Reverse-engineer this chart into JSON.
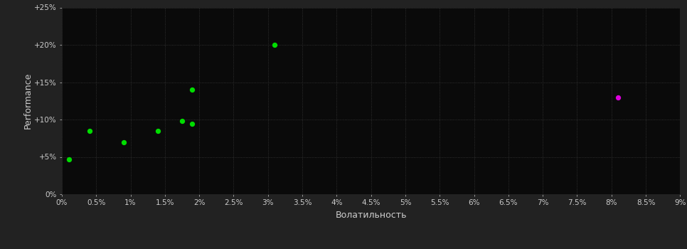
{
  "background_color": "#222222",
  "plot_bg_color": "#0a0a0a",
  "grid_color": "#3a3a3a",
  "grid_linestyle": ":",
  "xlabel": "Волатильность",
  "ylabel": "Performance",
  "xlim": [
    0,
    0.09
  ],
  "ylim": [
    0,
    0.25
  ],
  "xtick_values": [
    0,
    0.005,
    0.01,
    0.015,
    0.02,
    0.025,
    0.03,
    0.035,
    0.04,
    0.045,
    0.05,
    0.055,
    0.06,
    0.065,
    0.07,
    0.075,
    0.08,
    0.085,
    0.09
  ],
  "ytick_values": [
    0,
    0.05,
    0.1,
    0.15,
    0.2,
    0.25
  ],
  "ytick_labels": [
    "0%",
    "+5%",
    "+10%",
    "+15%",
    "+20%",
    "+25%"
  ],
  "xtick_labels": [
    "0%",
    "0.5%",
    "1%",
    "1.5%",
    "2%",
    "2.5%",
    "3%",
    "3.5%",
    "4%",
    "4.5%",
    "5%",
    "5.5%",
    "6%",
    "6.5%",
    "7%",
    "7.5%",
    "8%",
    "8.5%",
    "9%"
  ],
  "green_points": [
    [
      0.001,
      0.047
    ],
    [
      0.004,
      0.085
    ],
    [
      0.009,
      0.07
    ],
    [
      0.014,
      0.085
    ],
    [
      0.0175,
      0.098
    ],
    [
      0.019,
      0.094
    ],
    [
      0.019,
      0.14
    ],
    [
      0.031,
      0.2
    ]
  ],
  "magenta_points": [
    [
      0.081,
      0.13
    ]
  ],
  "green_color": "#00dd00",
  "magenta_color": "#dd00dd",
  "dot_size": 18,
  "tick_color": "#cccccc",
  "label_color": "#cccccc",
  "tick_fontsize": 7.5,
  "label_fontsize": 9
}
